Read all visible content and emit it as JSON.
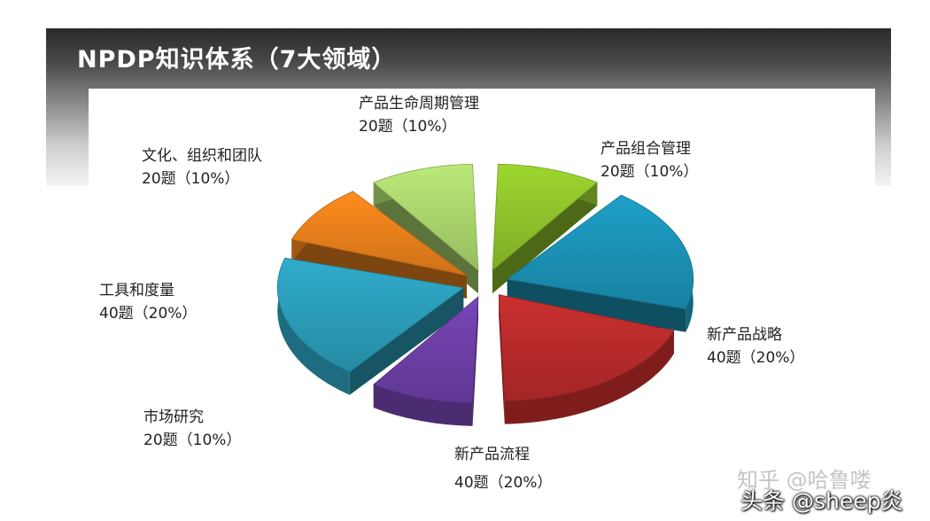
{
  "title": "NPDP知识体系（7大领域）",
  "chart_data": {
    "type": "pie",
    "title": "NPDP知识体系（7大领域）",
    "slices": [
      {
        "name": "产品组合管理",
        "questions": "20题",
        "percent": "（10%）",
        "value": 10,
        "color": "#8cbf2a"
      },
      {
        "name": "新产品战略",
        "questions": "40题",
        "percent": "（20%）",
        "value": 20,
        "color": "#1b8fb3"
      },
      {
        "name": "新产品流程",
        "questions": "40题",
        "percent": "（20%）",
        "value": 20,
        "color": "#b52a2a"
      },
      {
        "name": "市场研究",
        "questions": "20题",
        "percent": "（10%）",
        "value": 10,
        "color": "#6b3ea3"
      },
      {
        "name": "工具和度量",
        "questions": "40题",
        "percent": "（20%）",
        "value": 20,
        "color": "#2a9ab5"
      },
      {
        "name": "文化、组织和团队",
        "questions": "20题",
        "percent": "（10%）",
        "value": 10,
        "color": "#e47d1b"
      },
      {
        "name": "产品生命周期管理",
        "questions": "20题",
        "percent": "（10%）",
        "value": 10,
        "color": "#a7d16b"
      }
    ]
  },
  "watermarks": [
    "知乎 @哈鲁喽",
    "头条 @sheep炎"
  ]
}
